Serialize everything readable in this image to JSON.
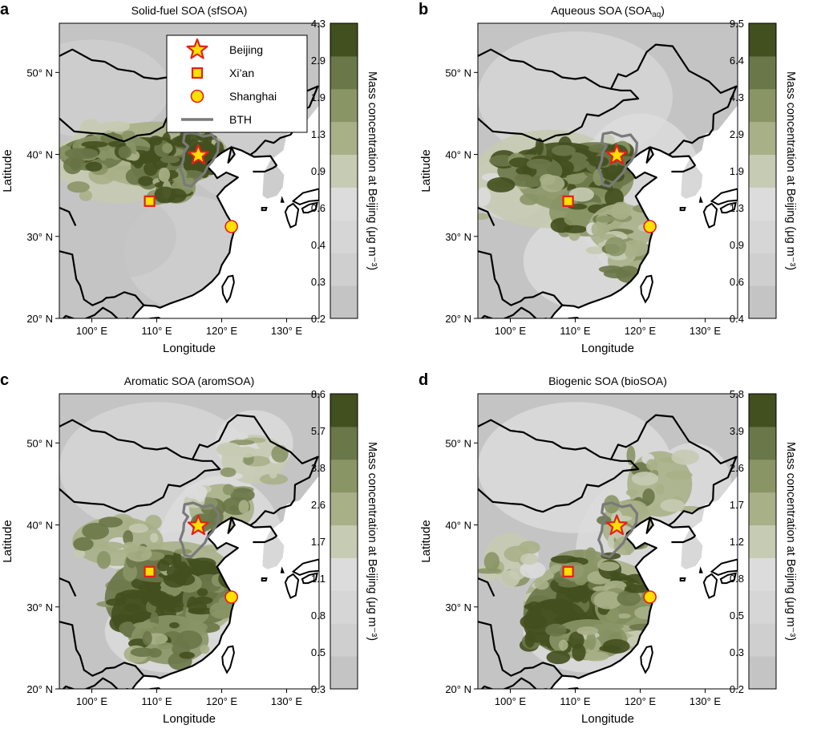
{
  "legend": {
    "items": [
      {
        "symbol": "star",
        "label": "Beijing"
      },
      {
        "symbol": "square",
        "label": "Xi’an"
      },
      {
        "symbol": "circle",
        "label": "Shanghai"
      },
      {
        "symbol": "line",
        "label": "BTH"
      }
    ]
  },
  "colors": {
    "ocean": "#ffffff",
    "land_base": "#c4c4c4",
    "coast": "#000000",
    "bth_outline": "#7a7a7a",
    "marker_fill": "#ffe000",
    "marker_edge": "#e3201b",
    "ramp": [
      "#c4c4c4",
      "#cfcfcf",
      "#d6d6d6",
      "#dcdcdc",
      "#c6cbb3",
      "#a8b088",
      "#8a9566",
      "#6a7748",
      "#424f1e"
    ]
  },
  "axes": {
    "xlabel": "Longitude",
    "ylabel": "Latitude",
    "xticks": [
      "100° E",
      "110° E",
      "120° E",
      "130° E"
    ],
    "yticks": [
      "50° N",
      "40° N",
      "30° N",
      "20° N"
    ],
    "xlim": [
      95,
      135
    ],
    "ylim": [
      20,
      56
    ]
  },
  "colorbar_label": "Mass concentration at Beijing (μg m⁻³)",
  "panels": [
    {
      "letter": "a",
      "title": "Solid-fuel SOA (sfSOA)",
      "colorbar_ticks": [
        "4.3",
        "2.9",
        "1.9",
        "1.3",
        "0.9",
        "0.6",
        "0.4",
        "0.3",
        "0.2"
      ],
      "pattern": "north"
    },
    {
      "letter": "b",
      "title": "Aqueous SOA (SOA",
      "title_sub": "aq",
      "title_end": ")",
      "colorbar_ticks": [
        "9.5",
        "6.4",
        "4.3",
        "2.9",
        "1.9",
        "1.3",
        "0.9",
        "0.6",
        "0.4"
      ],
      "pattern": "central"
    },
    {
      "letter": "c",
      "title": "Aromatic SOA (aromSOA)",
      "colorbar_ticks": [
        "8.6",
        "5.7",
        "3.8",
        "2.6",
        "1.7",
        "1.1",
        "0.8",
        "0.5",
        "0.3"
      ],
      "pattern": "south"
    },
    {
      "letter": "d",
      "title": "Biogenic SOA (bioSOA)",
      "colorbar_ticks": [
        "5.8",
        "3.9",
        "2.6",
        "1.7",
        "1.2",
        "0.8",
        "0.5",
        "0.3",
        "0.2"
      ],
      "pattern": "southwide"
    }
  ],
  "locations": [
    {
      "name": "Beijing",
      "symbol": "star",
      "lon": 116.4,
      "lat": 39.9
    },
    {
      "name": "Xi’an",
      "symbol": "square",
      "lon": 108.9,
      "lat": 34.3
    },
    {
      "name": "Shanghai",
      "symbol": "circle",
      "lon": 121.5,
      "lat": 31.2
    }
  ]
}
